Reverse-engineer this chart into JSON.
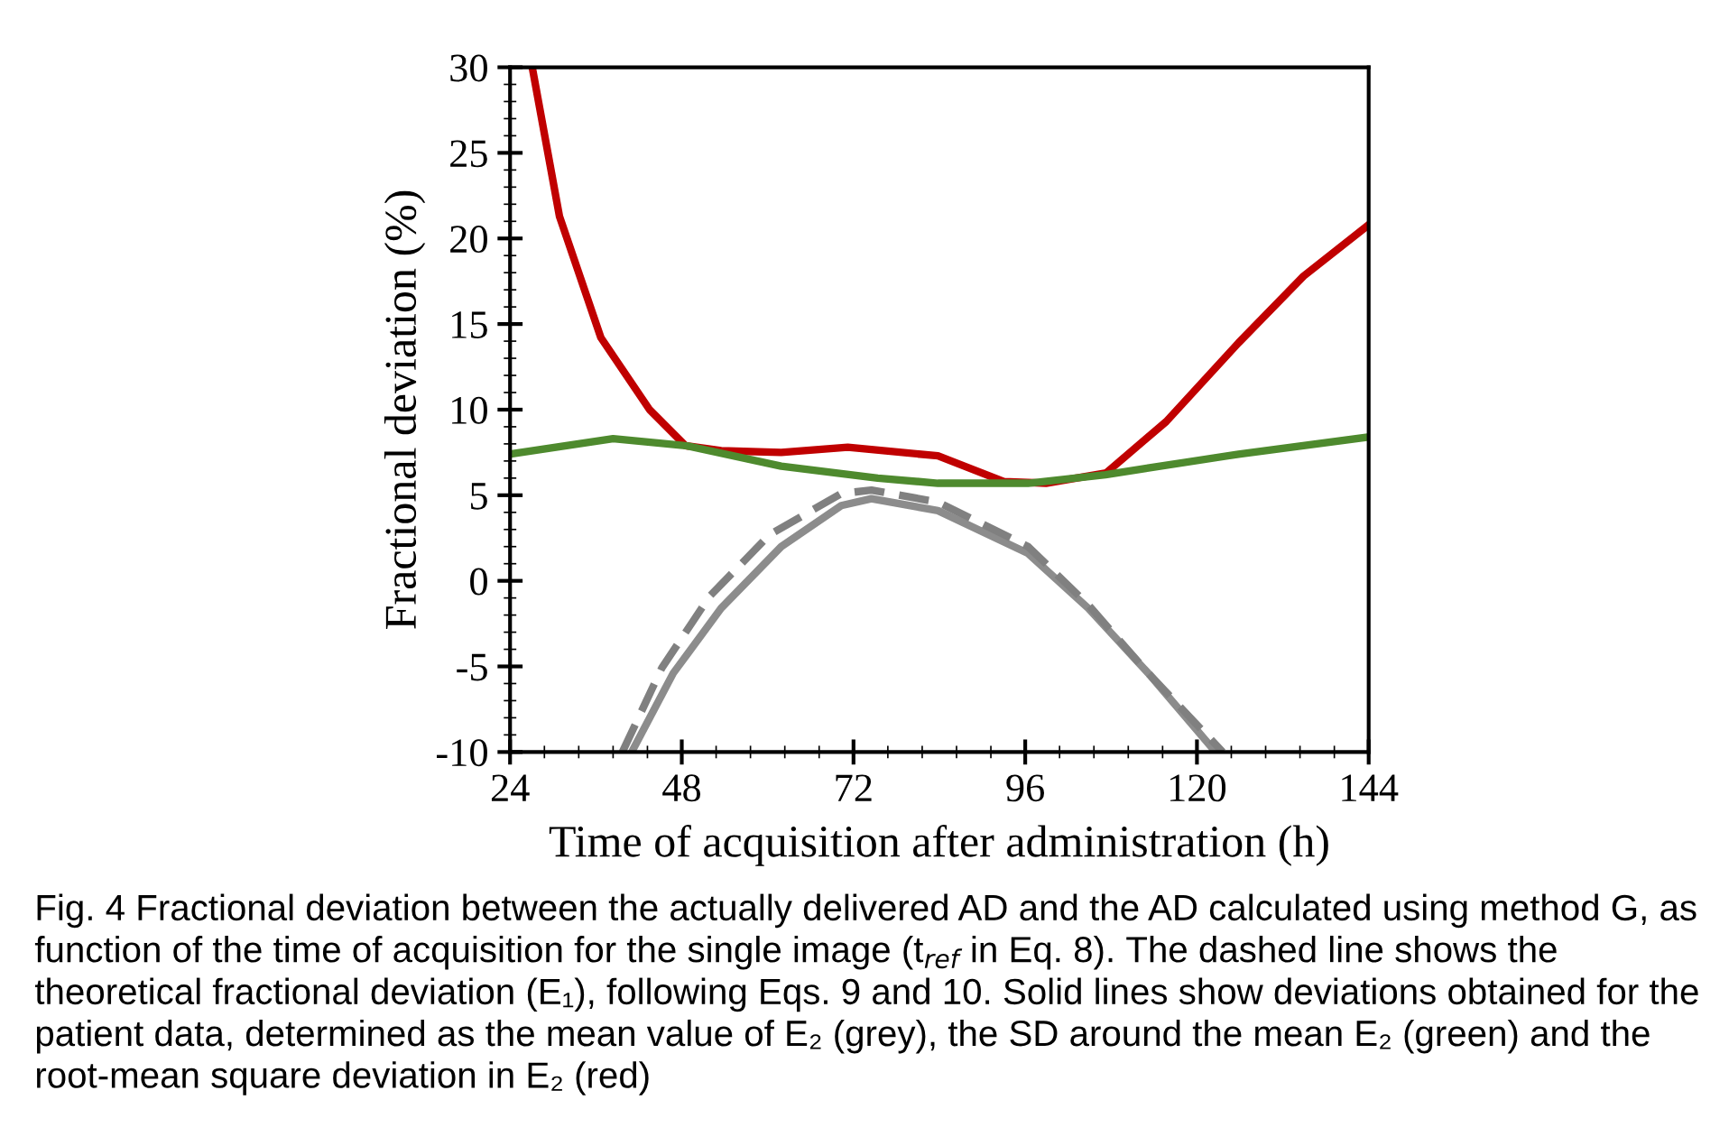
{
  "chart_data": {
    "type": "line",
    "xlabel": "Time of acquisition after administration (h)",
    "ylabel": "Fractional deviation (%)",
    "xlim": [
      24,
      144
    ],
    "xticks": [
      24,
      48,
      72,
      96,
      120,
      144
    ],
    "ylim": [
      -10,
      30
    ],
    "yticks": [
      -10,
      -5,
      0,
      5,
      10,
      15,
      20,
      25,
      30
    ],
    "grid": false,
    "legend": false,
    "marker": "none",
    "series": [
      {
        "color": "#c00000",
        "line_style": "solid",
        "x": [
          27.1,
          30.9,
          36.7,
          43.5,
          48.5,
          53.5,
          61.9,
          71.2,
          83.8,
          93,
          98.9,
          107.3,
          115.7,
          125.8,
          134.9,
          144
        ],
        "values": [
          30,
          21.3,
          14.2,
          10.0,
          7.9,
          7.6,
          7.5,
          7.8,
          7.3,
          5.8,
          5.7,
          6.3,
          9.3,
          13.9,
          17.8,
          20.8
        ]
      },
      {
        "color": "#4e8a2e",
        "line_style": "solid",
        "x": [
          24,
          38.4,
          48.5,
          61.9,
          75.4,
          83.8,
          96.4,
          107.2,
          125.8,
          144
        ],
        "values": [
          7.4,
          8.3,
          7.9,
          6.7,
          6.0,
          5.7,
          5.7,
          6.2,
          7.4,
          8.4
        ]
      },
      {
        "color": "#8c8c8c",
        "line_style": "solid",
        "x": [
          41,
          46.8,
          53.5,
          61.9,
          70.3,
          74.5,
          83.8,
          96.4,
          104.8,
          113.2,
          122.6
        ],
        "values": [
          -10,
          -5.4,
          -1.6,
          2.0,
          4.4,
          4.8,
          4.1,
          1.6,
          -1.6,
          -5.4,
          -10
        ]
      },
      {
        "color": "#808080",
        "line_style": "dashed",
        "x": [
          39.7,
          45.2,
          51.9,
          60.3,
          70.3,
          74.5,
          83.8,
          96.4,
          104.8,
          113.2,
          123.6
        ],
        "values": [
          -10,
          -5.1,
          -0.9,
          2.7,
          5.1,
          5.3,
          4.6,
          2.0,
          -1.4,
          -5.4,
          -10
        ]
      }
    ],
    "annotations": [
      "Fig. 4 Fractional deviation between the actually delivered AD and the AD calculated using method G, as function of the time of acquisition for the single image (t$_{ref}$ in Eq. 8). The dashed line shows the theoretical fractional deviation (E₁), following Eqs. 9 and 10. Solid lines show deviations obtained for the patient data, determined as the mean value of E₂ (grey), the SD around the mean E₂ (green) and the root-mean square deviation in E₂ (red)"
    ]
  }
}
